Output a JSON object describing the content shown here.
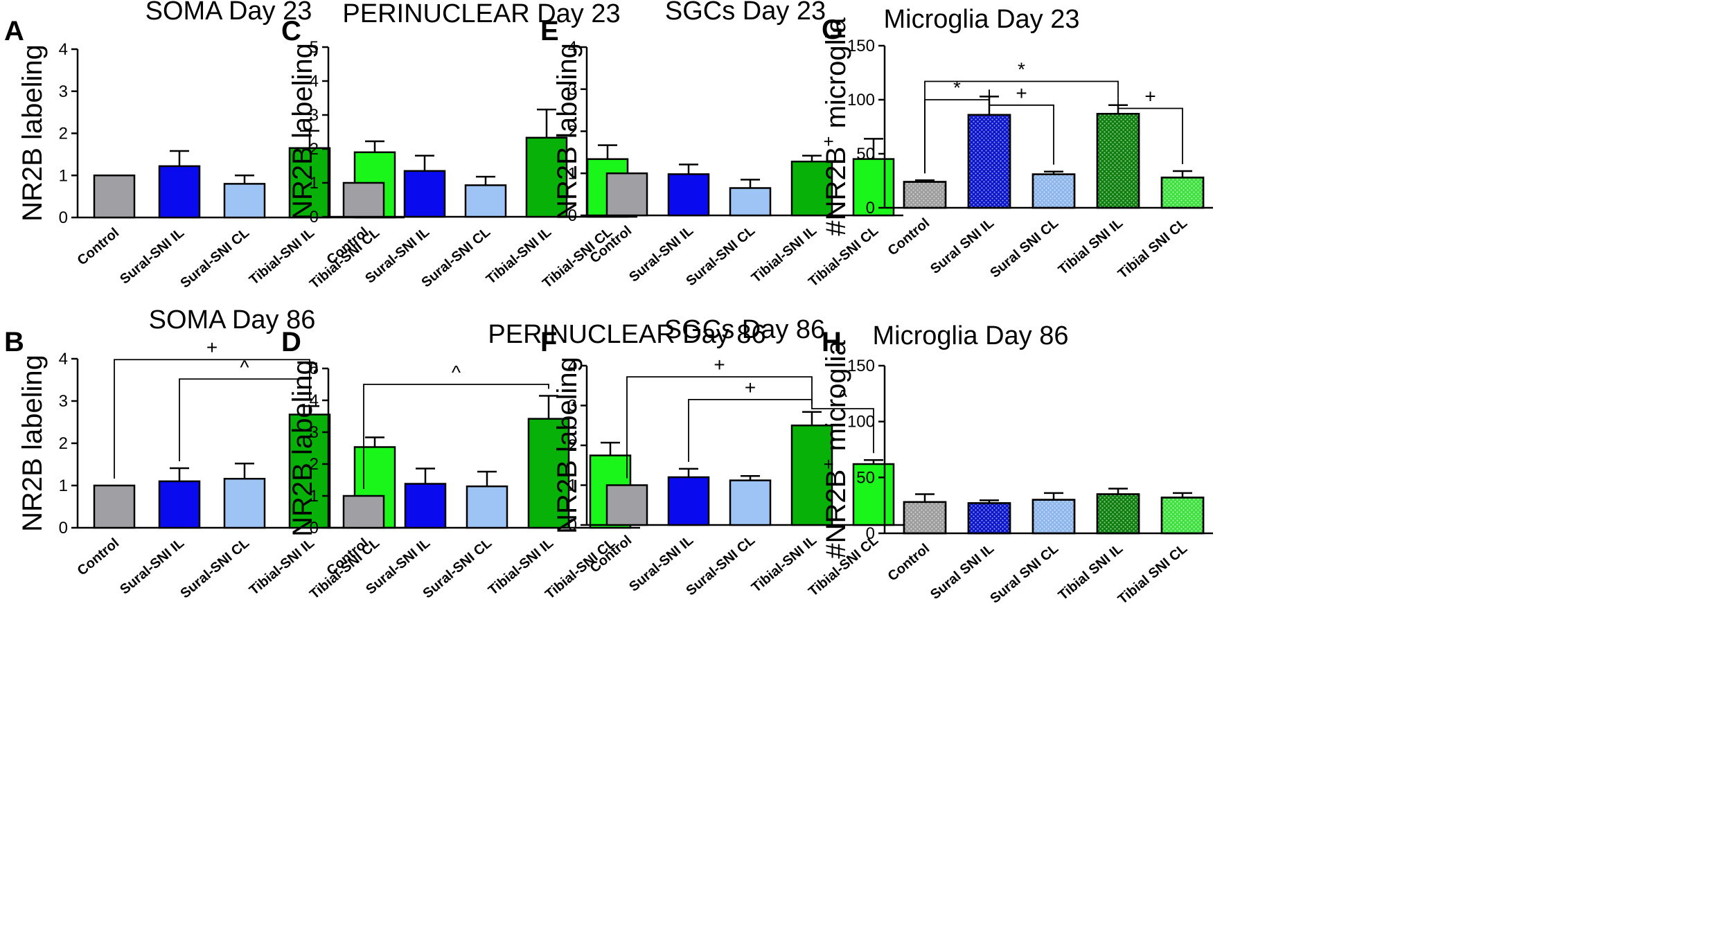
{
  "colors": {
    "control": "#a0a0a4",
    "sural_il": "#0a0aef",
    "sural_cl": "#9ec4f5",
    "tibial_il": "#08b108",
    "tibial_cl": "#1af51a",
    "micro_control": "#9c9c9c",
    "micro_sural_il": "#0a14c8",
    "micro_sural_cl": "#8cb6ec",
    "micro_tibial_il": "#0c7e0c",
    "micro_tibial_cl": "#3ee03e"
  },
  "chart_data": [
    {
      "id": "A",
      "type": "bar",
      "title": "SOMA Day 23",
      "ylabel": "NR2B labeling",
      "ylim": [
        0,
        4
      ],
      "yticks": [
        0,
        1,
        2,
        3,
        4
      ],
      "categories": [
        "Control",
        "Sural-SNI IL",
        "Sural-SNI CL",
        "Tibial-SNI IL",
        "Tibial-SNI CL"
      ],
      "values": [
        1.0,
        1.22,
        0.8,
        1.65,
        1.55
      ],
      "errors": [
        0,
        0.36,
        0.2,
        0.41,
        0.26
      ],
      "comparisons": []
    },
    {
      "id": "B",
      "type": "bar",
      "title": "SOMA Day 86",
      "ylabel": "NR2B labeling",
      "ylim": [
        0,
        4
      ],
      "yticks": [
        0,
        1,
        2,
        3,
        4
      ],
      "categories": [
        "Control",
        "Sural-SNI IL",
        "Sural-SNI CL",
        "Tibial-SNI IL",
        "Tibial-SNI CL"
      ],
      "values": [
        1.0,
        1.1,
        1.16,
        2.68,
        1.91
      ],
      "errors": [
        0,
        0.31,
        0.36,
        0.2,
        0.23
      ],
      "comparisons": [
        {
          "from": 0,
          "to": 3,
          "at": 3.98,
          "label": "+"
        },
        {
          "from": 1,
          "to": 3,
          "at": 3.52,
          "label": "^"
        }
      ]
    },
    {
      "id": "C",
      "type": "bar",
      "title": "PERINUCLEAR Day 23",
      "ylabel": "NR2B labeling",
      "ylim": [
        0,
        5
      ],
      "yticks": [
        0,
        1,
        2,
        3,
        4,
        5
      ],
      "categories": [
        "Control",
        "Sural-SNI IL",
        "Sural-SNI CL",
        "Tibial-SNI IL",
        "Tibial-SNI CL"
      ],
      "values": [
        1.0,
        1.35,
        0.93,
        2.33,
        1.7
      ],
      "errors": [
        0,
        0.45,
        0.25,
        0.83,
        0.41
      ],
      "comparisons": []
    },
    {
      "id": "D",
      "type": "bar",
      "title": "PERINUCLEAR Day 86",
      "ylabel": "NR2B labeling",
      "ylim": [
        0,
        5
      ],
      "yticks": [
        0,
        1,
        2,
        3,
        4,
        5
      ],
      "categories": [
        "Control",
        "Sural-SNI IL",
        "Sural-SNI CL",
        "Tibial-SNI IL",
        "Tibial-SNI CL"
      ],
      "values": [
        1.0,
        1.38,
        1.3,
        3.42,
        2.27
      ],
      "errors": [
        0,
        0.48,
        0.46,
        0.72,
        0.4
      ],
      "comparisons": [
        {
          "from": 0,
          "to": 3,
          "at": 4.5,
          "label": "^"
        }
      ]
    },
    {
      "id": "E",
      "type": "bar",
      "title": "SGCs Day 23",
      "ylabel": "NR2B labeling",
      "ylim": [
        0,
        4
      ],
      "yticks": [
        0,
        1,
        2,
        3,
        4
      ],
      "categories": [
        "Control",
        "Sural-SNI IL",
        "Sural-SNI CL",
        "Tibial-SNI IL",
        "Tibial-SNI CL"
      ],
      "values": [
        1.0,
        0.98,
        0.65,
        1.28,
        1.34
      ],
      "errors": [
        0,
        0.23,
        0.2,
        0.14,
        0.48
      ],
      "comparisons": []
    },
    {
      "id": "F",
      "type": "bar",
      "title": "SGCs Day 86",
      "ylabel": "NR2B labeling",
      "ylim": [
        0,
        4
      ],
      "yticks": [
        0,
        1,
        2,
        3,
        4
      ],
      "categories": [
        "Control",
        "Sural-SNI IL",
        "Sural-SNI CL",
        "Tibial-SNI IL",
        "Tibial-SNI CL"
      ],
      "values": [
        1.0,
        1.2,
        1.12,
        2.5,
        1.53
      ],
      "errors": [
        0,
        0.21,
        0.11,
        0.34,
        0.1
      ],
      "comparisons": [
        {
          "from": 0,
          "to": 3,
          "at": 3.72,
          "label": "+"
        },
        {
          "from": 1,
          "to": 3,
          "at": 3.15,
          "label": "+"
        },
        {
          "from": 3,
          "to": 4,
          "at": 2.92,
          "label": "^"
        }
      ]
    },
    {
      "id": "G",
      "type": "bar",
      "title": "Microglia Day 23",
      "ylabel_main": "#NR2B",
      "ylabel_sup": "+",
      "ylabel_rest": " microglia",
      "ylim": [
        0,
        150
      ],
      "yticks": [
        0,
        50,
        100,
        150
      ],
      "pattern": true,
      "categories": [
        "Control",
        "Sural SNI IL",
        "Sural SNI CL",
        "Tibial SNI IL",
        "Tibial SNI CL"
      ],
      "values": [
        24,
        86,
        31,
        87,
        28
      ],
      "errors": [
        1.5,
        17,
        2.5,
        8,
        6
      ],
      "comparisons": [
        {
          "from": 0,
          "to": 1,
          "at": 100,
          "label": "*"
        },
        {
          "from": 0,
          "to": 3,
          "at": 117,
          "label": "*"
        },
        {
          "from": 1,
          "to": 2,
          "at": 95,
          "label": "+"
        },
        {
          "from": 3,
          "to": 4,
          "at": 92,
          "label": "+"
        }
      ]
    },
    {
      "id": "H",
      "type": "bar",
      "title": "Microglia Day 86",
      "ylabel_main": "#NR2B",
      "ylabel_sup": "+",
      "ylabel_rest": " microglia",
      "ylim": [
        0,
        150
      ],
      "yticks": [
        0,
        50,
        100,
        150
      ],
      "pattern": true,
      "categories": [
        "Control",
        "Sural SNI IL",
        "Sural SNI CL",
        "Tibial SNI IL",
        "Tibial SNI CL"
      ],
      "values": [
        28,
        27,
        30,
        35,
        32
      ],
      "errors": [
        7,
        2.5,
        6,
        5,
        4
      ],
      "comparisons": []
    }
  ]
}
